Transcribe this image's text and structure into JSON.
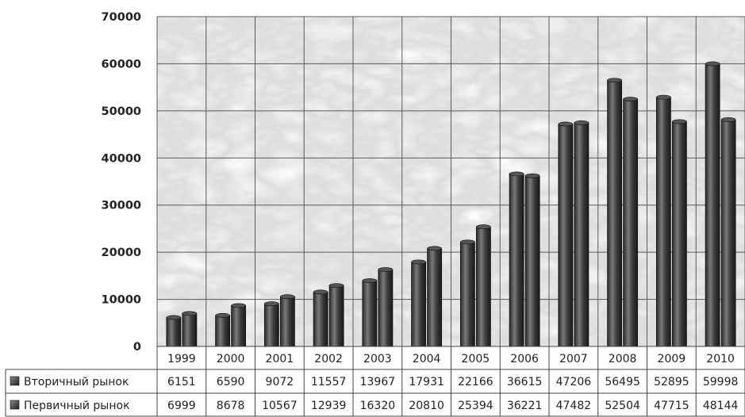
{
  "chart_data": {
    "type": "bar",
    "categories": [
      "1999",
      "2000",
      "2001",
      "2002",
      "2003",
      "2004",
      "2005",
      "2006",
      "2007",
      "2008",
      "2009",
      "2010"
    ],
    "series": [
      {
        "name": "Вторичный рынок",
        "values": [
          6151,
          6590,
          9072,
          11557,
          13967,
          17931,
          22166,
          36615,
          47206,
          56495,
          52895,
          59998
        ]
      },
      {
        "name": "Первичный рынок",
        "values": [
          6999,
          8678,
          10567,
          12939,
          16320,
          20810,
          25394,
          36221,
          47482,
          52504,
          47715,
          48144
        ]
      }
    ],
    "title": "",
    "xlabel": "",
    "ylabel": "",
    "ylim": [
      0,
      70000
    ],
    "yticks": [
      0,
      10000,
      20000,
      30000,
      40000,
      50000,
      60000,
      70000
    ],
    "grid": true,
    "legend": "data-table-left",
    "colors": {
      "bar": "#333333",
      "bar_highlight": "#7a7a7a",
      "grid": "#666666",
      "background": "marble-gray"
    }
  }
}
